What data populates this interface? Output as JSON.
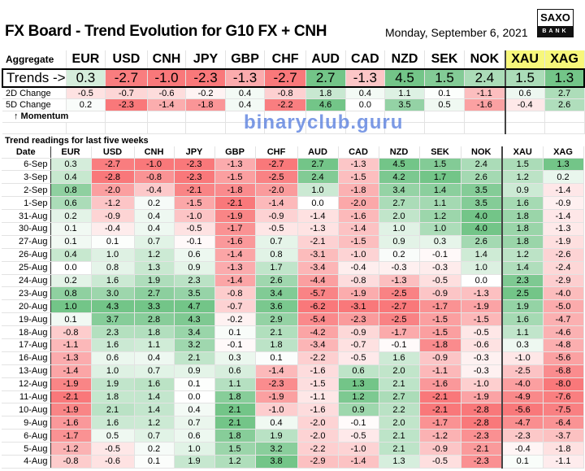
{
  "header": {
    "title": "FX Board - Trend Evolution for G10 FX + CNH",
    "date": "Monday, September 6, 2021",
    "logo_top": "SAXO",
    "logo_bottom": "BANK"
  },
  "currencies": [
    "EUR",
    "USD",
    "CNH",
    "JPY",
    "GBP",
    "CHF",
    "AUD",
    "CAD",
    "NZD",
    "SEK",
    "NOK",
    "XAU",
    "XAG"
  ],
  "aggregate": {
    "label": "Aggregate",
    "trends": {
      "label": "Trends ->",
      "values": [
        "0.3",
        "-2.7",
        "-1.0",
        "-2.3",
        "-1.3",
        "-2.7",
        "2.7",
        "-1.3",
        "4.5",
        "1.5",
        "2.4",
        "1.5",
        "1.3"
      ]
    },
    "change_2d": {
      "label": "2D Change",
      "values": [
        "-0.5",
        "-0.7",
        "-0.6",
        "-0.2",
        "0.4",
        "-0.8",
        "1.8",
        "0.4",
        "1.1",
        "0.1",
        "-1.1",
        "0.6",
        "2.7"
      ]
    },
    "change_5d": {
      "label": "5D Change",
      "values": [
        "0.2",
        "-2.3",
        "-1.4",
        "-1.8",
        "0.4",
        "-2.2",
        "4.6",
        "0.0",
        "3.5",
        "0.5",
        "-1.6",
        "-0.4",
        "2.6"
      ]
    },
    "momentum_label": "↑ Momentum"
  },
  "history": {
    "section_title": "Trend readings for last five weeks",
    "date_label": "Date",
    "rows": [
      {
        "date": "6-Sep",
        "values": [
          "0.3",
          "-2.7",
          "-1.0",
          "-2.3",
          "-1.3",
          "-2.7",
          "2.7",
          "-1.3",
          "4.5",
          "1.5",
          "2.4",
          "1.5",
          "1.3"
        ]
      },
      {
        "date": "3-Sep",
        "values": [
          "0.4",
          "-2.8",
          "-0.8",
          "-2.3",
          "-1.5",
          "-2.5",
          "2.4",
          "-1.5",
          "4.2",
          "1.7",
          "2.6",
          "1.2",
          "0.2"
        ]
      },
      {
        "date": "2-Sep",
        "values": [
          "0.8",
          "-2.0",
          "-0.4",
          "-2.1",
          "-1.8",
          "-2.0",
          "1.0",
          "-1.8",
          "3.4",
          "1.4",
          "3.5",
          "0.9",
          "-1.4"
        ]
      },
      {
        "date": "1-Sep",
        "values": [
          "0.6",
          "-1.2",
          "0.2",
          "-1.5",
          "-2.1",
          "-1.4",
          "0.0",
          "-2.0",
          "2.7",
          "1.1",
          "3.5",
          "1.6",
          "-0.9"
        ]
      },
      {
        "date": "31-Aug",
        "values": [
          "0.2",
          "-0.9",
          "0.4",
          "-1.0",
          "-1.9",
          "-0.9",
          "-1.4",
          "-1.6",
          "2.0",
          "1.2",
          "4.0",
          "1.8",
          "-1.4"
        ]
      },
      {
        "date": "30-Aug",
        "values": [
          "0.1",
          "-0.4",
          "0.4",
          "-0.5",
          "-1.7",
          "-0.5",
          "-1.3",
          "-1.4",
          "1.0",
          "1.0",
          "4.0",
          "1.8",
          "-1.3"
        ]
      },
      {
        "date": "27-Aug",
        "values": [
          "0.1",
          "0.1",
          "0.7",
          "-0.1",
          "-1.6",
          "0.7",
          "-2.1",
          "-1.5",
          "0.9",
          "0.3",
          "2.6",
          "1.8",
          "-1.9"
        ]
      },
      {
        "date": "26-Aug",
        "values": [
          "0.4",
          "1.0",
          "1.2",
          "0.6",
          "-1.4",
          "0.8",
          "-3.1",
          "-1.0",
          "0.2",
          "-0.1",
          "1.4",
          "1.2",
          "-2.6"
        ]
      },
      {
        "date": "25-Aug",
        "values": [
          "0.0",
          "0.8",
          "1.3",
          "0.9",
          "-1.3",
          "1.7",
          "-3.4",
          "-0.4",
          "-0.3",
          "-0.3",
          "1.0",
          "1.4",
          "-2.4"
        ]
      },
      {
        "date": "24-Aug",
        "values": [
          "0.2",
          "1.6",
          "1.9",
          "2.3",
          "-1.4",
          "2.6",
          "-4.4",
          "-0.8",
          "-1.3",
          "-0.5",
          "0.0",
          "2.3",
          "-2.9"
        ]
      },
      {
        "date": "23-Aug",
        "values": [
          "0.8",
          "3.0",
          "2.7",
          "3.5",
          "-0.8",
          "3.4",
          "-5.7",
          "-1.9",
          "-2.5",
          "-0.9",
          "-1.3",
          "2.5",
          "-4.0"
        ]
      },
      {
        "date": "20-Aug",
        "values": [
          "1.0",
          "4.3",
          "3.3",
          "4.7",
          "-0.7",
          "3.6",
          "-6.2",
          "-3.1",
          "-2.7",
          "-1.7",
          "-1.9",
          "1.9",
          "-5.0"
        ]
      },
      {
        "date": "19-Aug",
        "values": [
          "0.1",
          "3.7",
          "2.8",
          "4.3",
          "-0.2",
          "2.9",
          "-5.4",
          "-2.3",
          "-2.5",
          "-1.5",
          "-1.5",
          "1.6",
          "-4.7"
        ]
      },
      {
        "date": "18-Aug",
        "values": [
          "-0.8",
          "2.3",
          "1.8",
          "3.4",
          "0.1",
          "2.1",
          "-4.2",
          "-0.9",
          "-1.7",
          "-1.5",
          "-0.5",
          "1.1",
          "-4.6"
        ]
      },
      {
        "date": "17-Aug",
        "values": [
          "-1.1",
          "1.6",
          "1.1",
          "3.2",
          "-0.1",
          "1.8",
          "-3.4",
          "-0.7",
          "-0.1",
          "-1.8",
          "-0.6",
          "0.3",
          "-4.8"
        ]
      },
      {
        "date": "16-Aug",
        "values": [
          "-1.3",
          "0.6",
          "0.4",
          "2.1",
          "0.3",
          "0.1",
          "-2.2",
          "-0.5",
          "1.6",
          "-0.9",
          "-0.3",
          "-1.0",
          "-5.6"
        ]
      },
      {
        "date": "13-Aug",
        "values": [
          "-1.4",
          "1.0",
          "0.7",
          "0.9",
          "0.6",
          "-1.4",
          "-1.6",
          "0.6",
          "2.0",
          "-1.1",
          "-0.3",
          "-2.5",
          "-6.8"
        ]
      },
      {
        "date": "12-Aug",
        "values": [
          "-1.9",
          "1.9",
          "1.6",
          "0.1",
          "1.1",
          "-2.3",
          "-1.5",
          "1.3",
          "2.1",
          "-1.6",
          "-1.0",
          "-4.0",
          "-8.0"
        ]
      },
      {
        "date": "11-Aug",
        "values": [
          "-2.1",
          "1.8",
          "1.4",
          "0.0",
          "1.8",
          "-1.9",
          "-1.1",
          "1.2",
          "2.7",
          "-2.1",
          "-1.9",
          "-4.9",
          "-7.6"
        ]
      },
      {
        "date": "10-Aug",
        "values": [
          "-1.9",
          "2.1",
          "1.4",
          "0.4",
          "2.1",
          "-1.0",
          "-1.6",
          "0.9",
          "2.2",
          "-2.1",
          "-2.8",
          "-5.6",
          "-7.5"
        ]
      },
      {
        "date": "9-Aug",
        "values": [
          "-1.6",
          "1.6",
          "1.2",
          "0.7",
          "2.1",
          "0.4",
          "-2.0",
          "-0.1",
          "2.0",
          "-1.7",
          "-2.8",
          "-4.7",
          "-6.4"
        ]
      },
      {
        "date": "6-Aug",
        "values": [
          "-1.7",
          "0.5",
          "0.7",
          "0.6",
          "1.8",
          "1.9",
          "-2.0",
          "-0.5",
          "2.1",
          "-1.2",
          "-2.3",
          "-2.3",
          "-3.7"
        ]
      },
      {
        "date": "5-Aug",
        "values": [
          "-1.2",
          "-0.5",
          "0.2",
          "1.0",
          "1.5",
          "3.2",
          "-2.2",
          "-1.0",
          "2.1",
          "-0.9",
          "-2.1",
          "-0.4",
          "-1.8"
        ]
      },
      {
        "date": "4-Aug",
        "values": [
          "-0.8",
          "-0.6",
          "0.1",
          "1.9",
          "1.2",
          "3.8",
          "-2.9",
          "-1.4",
          "1.3",
          "-0.5",
          "-2.3",
          "0.1",
          "-1.1"
        ]
      }
    ]
  },
  "colors": {
    "positive": "#63BE7B",
    "negative": "#F8696B",
    "neutral": "#FFFFFF",
    "commodity_header": "#F7F77A"
  },
  "watermark": "binaryclub.guru"
}
